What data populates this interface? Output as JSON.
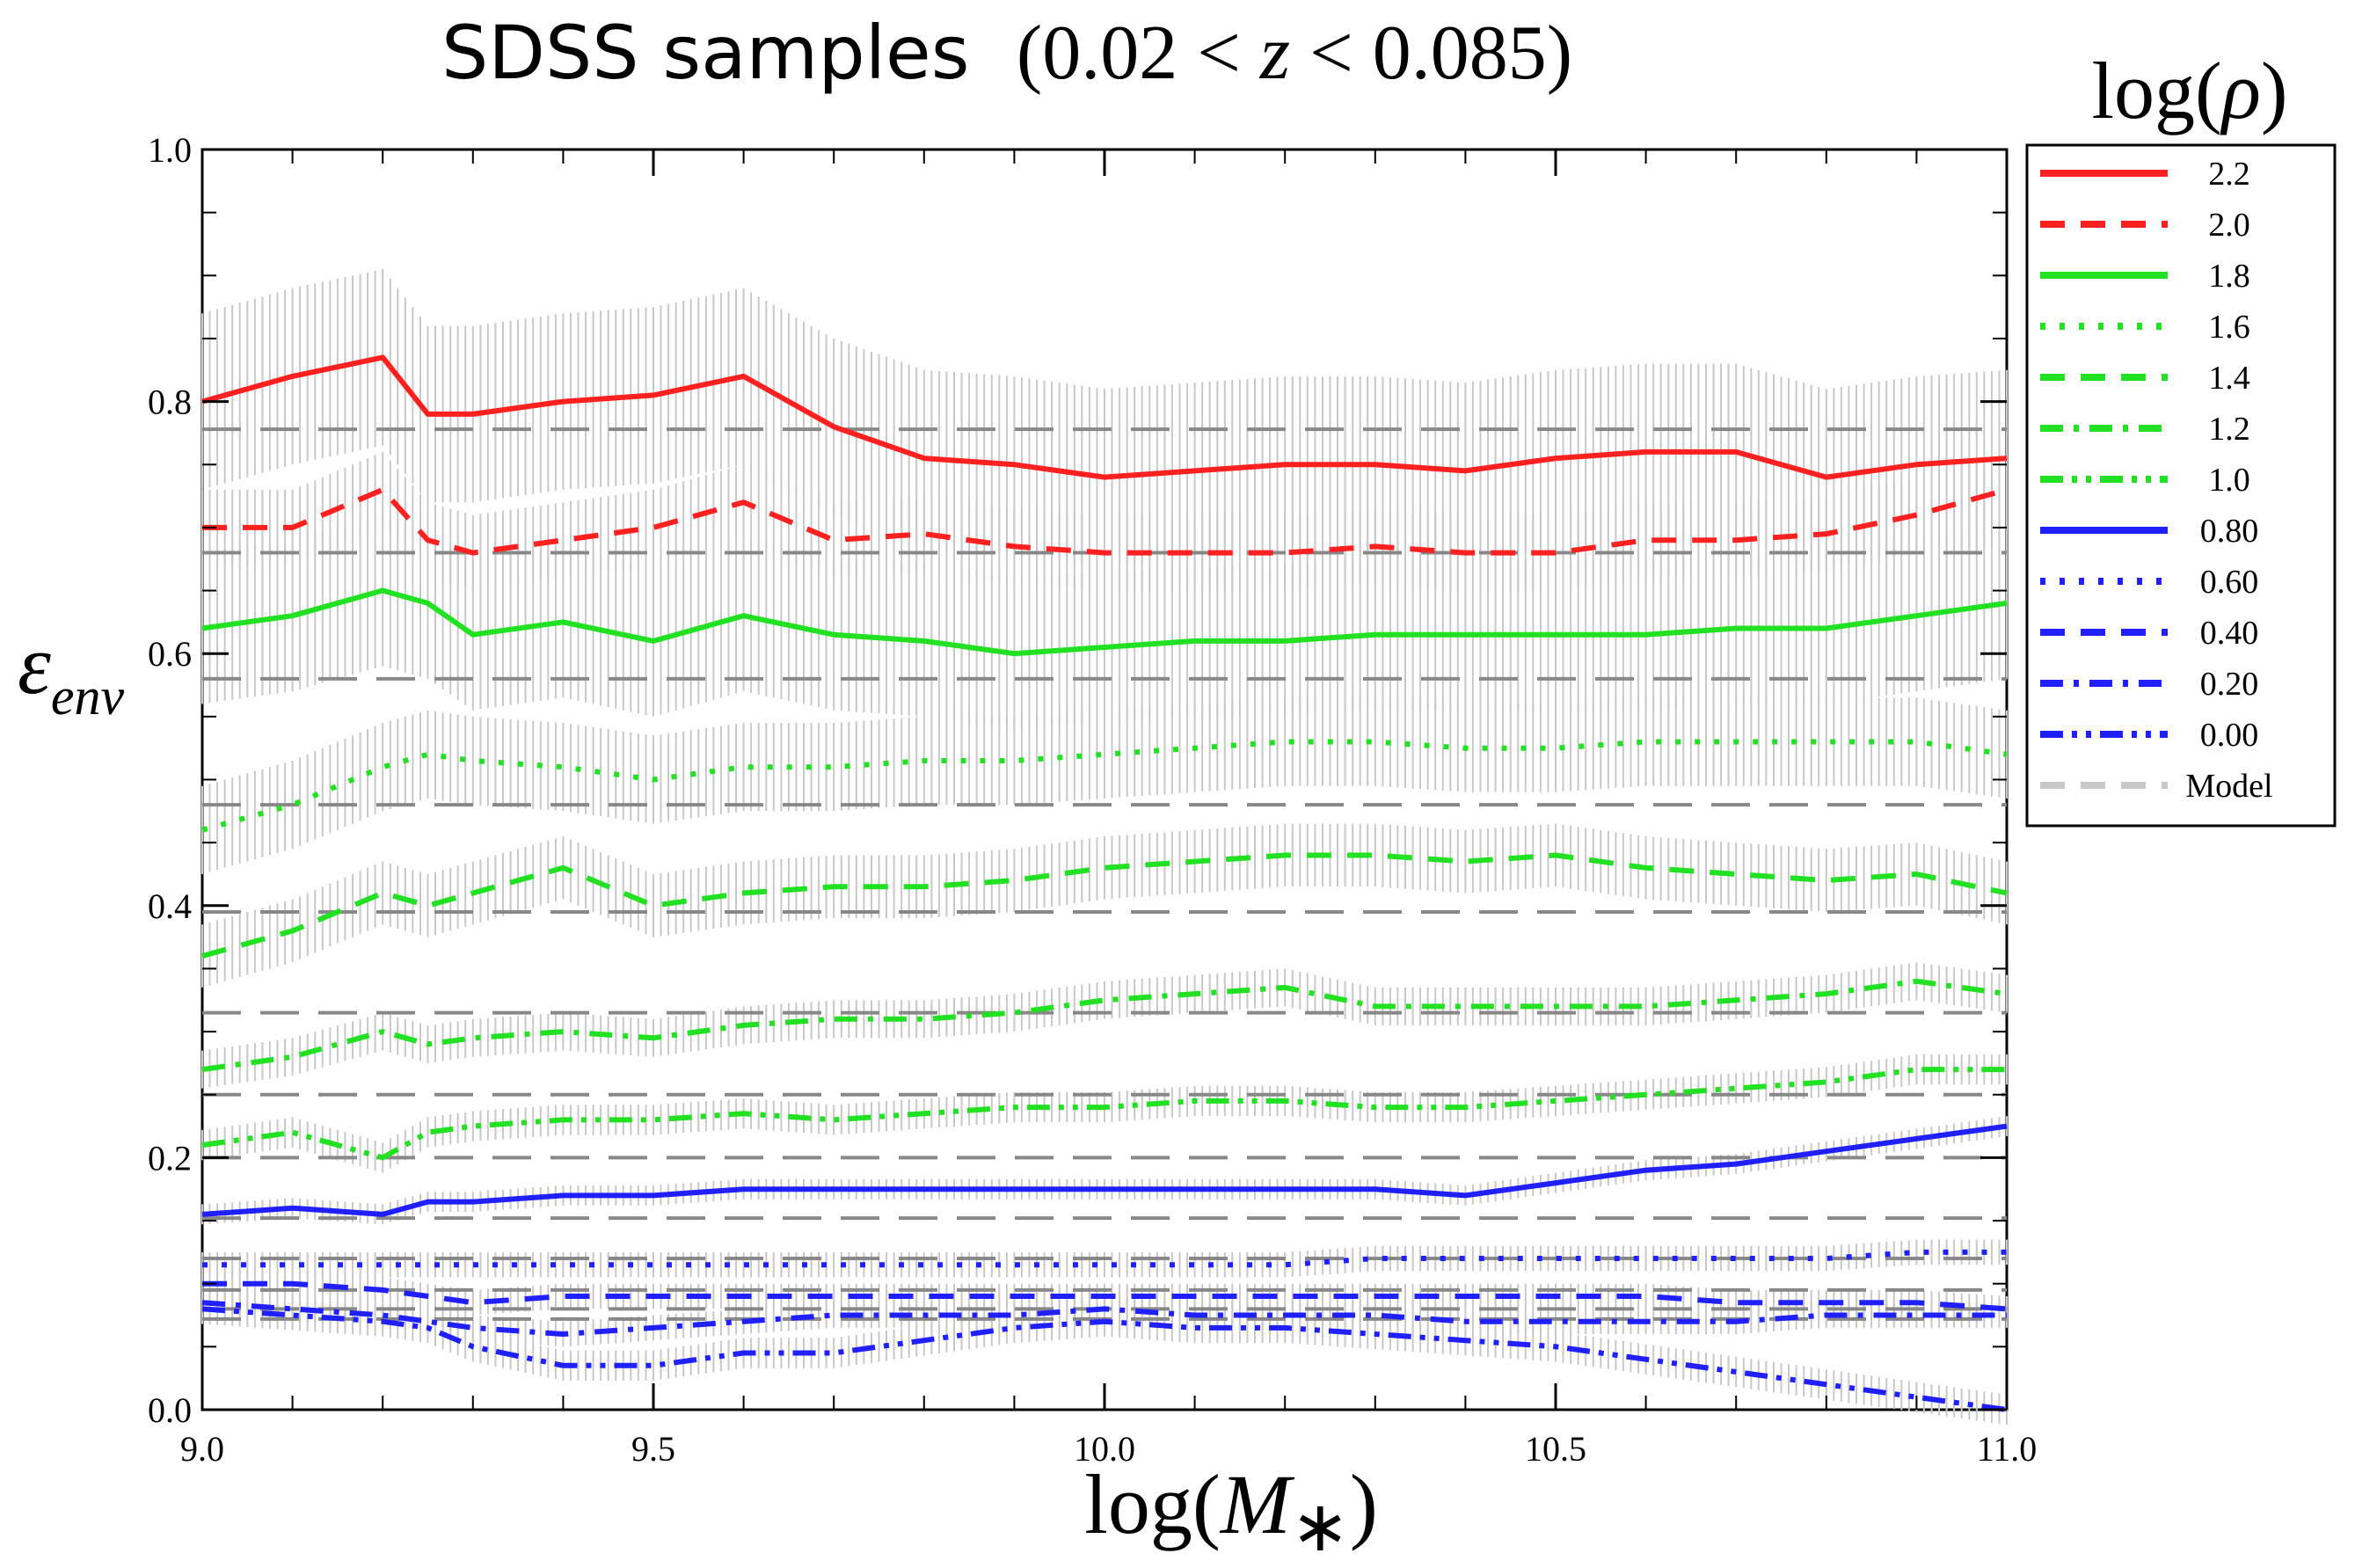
{
  "title": {
    "prefix": "SDSS samples",
    "range_open": "(0.02 < ",
    "range_var": "z",
    "range_close": " < 0.085)"
  },
  "legend_title": {
    "prefix": "log(",
    "var": "ρ",
    "suffix": ")"
  },
  "axis_labels": {
    "y_main": "ε",
    "y_sub": "env",
    "x_prefix": "log(",
    "x_var": "M",
    "x_sub": "∗",
    "x_suffix": ")"
  },
  "chart_data": {
    "type": "line",
    "xlim": [
      9.0,
      11.0
    ],
    "ylim": [
      0.0,
      1.0
    ],
    "x_ticks": [
      {
        "value": 9.0,
        "label": "9.0"
      },
      {
        "value": 9.5,
        "label": "9.5"
      },
      {
        "value": 10.0,
        "label": "10.0"
      },
      {
        "value": 10.5,
        "label": "10.5"
      },
      {
        "value": 11.0,
        "label": "11.0"
      }
    ],
    "y_ticks": [
      {
        "value": 0.0,
        "label": "0.0"
      },
      {
        "value": 0.2,
        "label": "0.2"
      },
      {
        "value": 0.4,
        "label": "0.4"
      },
      {
        "value": 0.6,
        "label": "0.6"
      },
      {
        "value": 0.8,
        "label": "0.8"
      },
      {
        "value": 1.0,
        "label": "1.0"
      }
    ],
    "grid": false,
    "legend_position": "right",
    "x": [
      9.0,
      9.1,
      9.2,
      9.25,
      9.3,
      9.4,
      9.5,
      9.6,
      9.7,
      9.8,
      9.9,
      10.0,
      10.1,
      10.2,
      10.3,
      10.4,
      10.5,
      10.6,
      10.7,
      10.8,
      10.9,
      11.0
    ],
    "series": [
      {
        "name": "2.2",
        "color": "#ff2020",
        "style": "solid",
        "err": 0.07,
        "values": [
          0.8,
          0.82,
          0.835,
          0.79,
          0.79,
          0.8,
          0.805,
          0.82,
          0.78,
          0.755,
          0.75,
          0.74,
          0.745,
          0.75,
          0.75,
          0.745,
          0.755,
          0.76,
          0.76,
          0.74,
          0.75,
          0.755
        ]
      },
      {
        "name": "2.0",
        "color": "#ff2020",
        "style": "dashed",
        "err": 0.03,
        "values": [
          0.7,
          0.7,
          0.73,
          0.69,
          0.68,
          0.69,
          0.7,
          0.72,
          0.69,
          0.695,
          0.685,
          0.68,
          0.68,
          0.68,
          0.685,
          0.68,
          0.68,
          0.69,
          0.69,
          0.695,
          0.71,
          0.73
        ]
      },
      {
        "name": "1.8",
        "color": "#22e022",
        "style": "solid",
        "err": 0.06,
        "values": [
          0.62,
          0.63,
          0.65,
          0.64,
          0.615,
          0.625,
          0.61,
          0.63,
          0.615,
          0.61,
          0.6,
          0.605,
          0.61,
          0.61,
          0.615,
          0.615,
          0.615,
          0.615,
          0.62,
          0.62,
          0.63,
          0.64
        ]
      },
      {
        "name": "1.6",
        "color": "#22e022",
        "style": "dotted",
        "err": 0.035,
        "values": [
          0.46,
          0.48,
          0.51,
          0.52,
          0.515,
          0.51,
          0.5,
          0.51,
          0.51,
          0.515,
          0.515,
          0.52,
          0.525,
          0.53,
          0.53,
          0.525,
          0.525,
          0.53,
          0.53,
          0.53,
          0.53,
          0.52
        ]
      },
      {
        "name": "1.4",
        "color": "#22e022",
        "style": "dashed",
        "err": 0.025,
        "values": [
          0.36,
          0.38,
          0.41,
          0.4,
          0.41,
          0.43,
          0.4,
          0.41,
          0.415,
          0.415,
          0.42,
          0.43,
          0.435,
          0.44,
          0.44,
          0.435,
          0.44,
          0.43,
          0.425,
          0.42,
          0.425,
          0.41
        ]
      },
      {
        "name": "1.2",
        "color": "#22e022",
        "style": "dashdot",
        "err": 0.015,
        "values": [
          0.27,
          0.28,
          0.3,
          0.29,
          0.295,
          0.3,
          0.295,
          0.305,
          0.31,
          0.31,
          0.315,
          0.325,
          0.33,
          0.335,
          0.32,
          0.32,
          0.32,
          0.32,
          0.325,
          0.33,
          0.34,
          0.33
        ]
      },
      {
        "name": "1.0",
        "color": "#22e022",
        "style": "dashdotdot",
        "err": 0.012,
        "values": [
          0.21,
          0.22,
          0.2,
          0.22,
          0.225,
          0.23,
          0.23,
          0.235,
          0.23,
          0.235,
          0.24,
          0.24,
          0.245,
          0.245,
          0.24,
          0.24,
          0.245,
          0.25,
          0.255,
          0.26,
          0.27,
          0.27
        ]
      },
      {
        "name": "0.80",
        "color": "#2020ff",
        "style": "solid",
        "err": 0.008,
        "values": [
          0.155,
          0.16,
          0.155,
          0.165,
          0.165,
          0.17,
          0.17,
          0.175,
          0.175,
          0.175,
          0.175,
          0.175,
          0.175,
          0.175,
          0.175,
          0.17,
          0.18,
          0.19,
          0.195,
          0.205,
          0.215,
          0.225
        ]
      },
      {
        "name": "0.60",
        "color": "#2020ff",
        "style": "dotted",
        "err": 0.01,
        "values": [
          0.115,
          0.115,
          0.115,
          0.115,
          0.115,
          0.115,
          0.115,
          0.115,
          0.115,
          0.115,
          0.115,
          0.115,
          0.115,
          0.115,
          0.12,
          0.12,
          0.12,
          0.12,
          0.12,
          0.12,
          0.125,
          0.125
        ]
      },
      {
        "name": "0.40",
        "color": "#2020ff",
        "style": "dashed",
        "err": 0.01,
        "values": [
          0.1,
          0.1,
          0.095,
          0.09,
          0.085,
          0.09,
          0.09,
          0.09,
          0.09,
          0.09,
          0.09,
          0.09,
          0.09,
          0.09,
          0.09,
          0.09,
          0.09,
          0.09,
          0.085,
          0.085,
          0.085,
          0.08
        ]
      },
      {
        "name": "0.20",
        "color": "#2020ff",
        "style": "dashdot",
        "err": 0.01,
        "values": [
          0.085,
          0.08,
          0.075,
          0.07,
          0.065,
          0.06,
          0.065,
          0.07,
          0.075,
          0.075,
          0.075,
          0.08,
          0.075,
          0.075,
          0.075,
          0.07,
          0.07,
          0.07,
          0.07,
          0.075,
          0.075,
          0.075
        ]
      },
      {
        "name": "0.00",
        "color": "#2020ff",
        "style": "dashdotdot",
        "err": 0.012,
        "values": [
          0.08,
          0.075,
          0.07,
          0.065,
          0.05,
          0.035,
          0.035,
          0.045,
          0.045,
          0.055,
          0.065,
          0.07,
          0.065,
          0.065,
          0.06,
          0.055,
          0.05,
          0.04,
          0.03,
          0.02,
          0.01,
          0.0
        ]
      }
    ],
    "model_lines": {
      "name": "Model",
      "color": "#888888",
      "values": [
        0.778,
        0.68,
        0.58,
        0.48,
        0.395,
        0.315,
        0.25,
        0.2,
        0.152,
        0.12,
        0.095,
        0.08,
        0.072
      ]
    }
  }
}
